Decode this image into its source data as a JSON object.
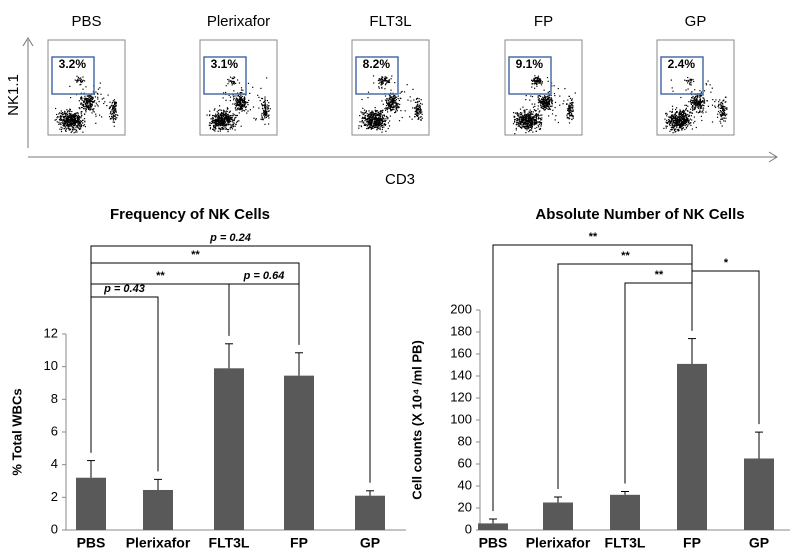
{
  "flow": {
    "x_label": "CD3",
    "y_label": "NK1.1",
    "panels": [
      {
        "title": "PBS",
        "gate_label": "3.2%"
      },
      {
        "title": "Plerixafor",
        "gate_label": "3.1%"
      },
      {
        "title": "FLT3L",
        "gate_label": "8.2%"
      },
      {
        "title": "FP",
        "gate_label": "9.1%"
      },
      {
        "title": "GP",
        "gate_label": "2.4%"
      }
    ]
  },
  "chart_data": [
    {
      "type": "bar",
      "title": "Frequency of NK Cells",
      "y_label": "% Total WBCs",
      "categories": [
        "PBS",
        "Plerixafor",
        "FLT3L",
        "FP",
        "GP"
      ],
      "values": [
        3.2,
        2.45,
        9.9,
        9.45,
        2.1
      ],
      "errors": [
        1.05,
        0.65,
        1.5,
        1.4,
        0.3
      ],
      "color": "#595959",
      "ylim": [
        0,
        12
      ],
      "yticks": [
        0,
        2,
        4,
        6,
        8,
        10,
        12
      ],
      "annotations": [
        "p = 0.43",
        "**",
        "p = 0.64",
        "**",
        "p = 0.24"
      ]
    },
    {
      "type": "bar",
      "title": "Absolute Number of NK Cells",
      "y_label": "Cell counts  (X 10⁴ /ml PB)",
      "categories": [
        "PBS",
        "Plerixafor",
        "FLT3L",
        "FP",
        "GP"
      ],
      "values": [
        6,
        25,
        32,
        151,
        65
      ],
      "errors": [
        4,
        5,
        3,
        23,
        24
      ],
      "color": "#595959",
      "ylim": [
        0,
        200
      ],
      "yticks": [
        0,
        20,
        40,
        60,
        80,
        100,
        120,
        140,
        160,
        180,
        200
      ],
      "annotations": [
        "**",
        "**",
        "**",
        "*"
      ]
    }
  ]
}
